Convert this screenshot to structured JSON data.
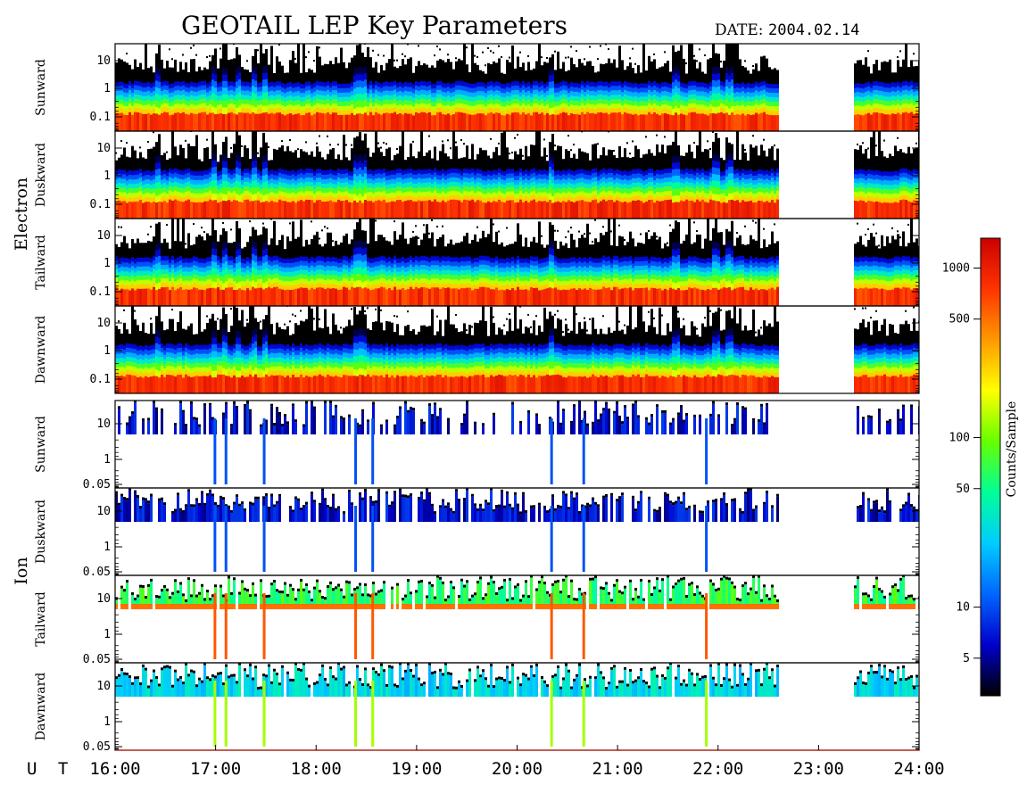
{
  "header": {
    "title": "GEOTAIL LEP Key Parameters",
    "date_label": "DATE:",
    "date_value": "2004.02.14"
  },
  "chart_data": {
    "type": "heatmap",
    "title": "GEOTAIL LEP Key Parameters",
    "x_axis": {
      "label": "U T",
      "range": [
        "16:00",
        "24:00"
      ],
      "ticks": [
        "16:00",
        "17:00",
        "18:00",
        "19:00",
        "20:00",
        "21:00",
        "22:00",
        "23:00",
        "24:00"
      ]
    },
    "data_gaps": [
      [
        "22:35",
        "23:20"
      ]
    ],
    "groups": [
      {
        "name": "Electron",
        "y_scale": "log",
        "y_ticks": [
          "10",
          "1",
          "0.1"
        ],
        "panels": [
          "Sunward",
          "Duskward",
          "Tailward",
          "Dawnward"
        ]
      },
      {
        "name": "Ion",
        "y_scale": "log",
        "y_ticks": [
          "10",
          "1",
          "0.05"
        ],
        "panels": [
          "Sunward",
          "Duskward",
          "Tailward",
          "Dawnward"
        ]
      }
    ],
    "colorbar": {
      "label": "Counts/Sample",
      "scale": "log",
      "range": [
        3,
        1500
      ],
      "ticks": [
        "1000",
        "500",
        "100",
        "50",
        "10",
        "5"
      ],
      "colormap": [
        "#000000",
        "#0000cc",
        "#0066ff",
        "#00ccff",
        "#00ff99",
        "#66ff00",
        "#ffff00",
        "#ff9900",
        "#ff3300",
        "#cc0000"
      ]
    }
  }
}
